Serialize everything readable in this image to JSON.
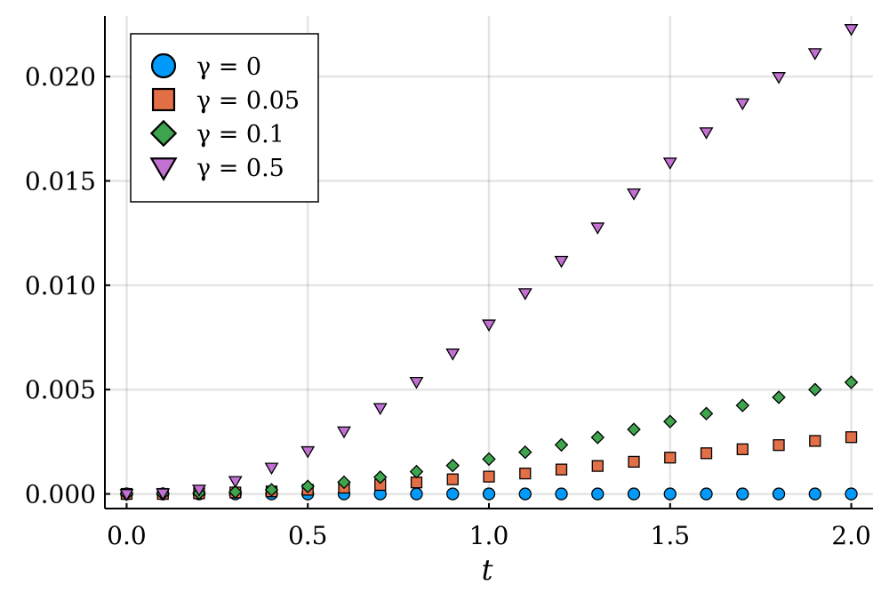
{
  "chart_data": {
    "type": "scatter",
    "title": "",
    "xlabel": "t",
    "ylabel": "",
    "xlim": [
      -0.06,
      2.06
    ],
    "ylim": [
      -0.0007,
      0.0229
    ],
    "grid": true,
    "legend_position": "top-left",
    "x_ticks": [
      0.0,
      0.5,
      1.0,
      1.5,
      2.0
    ],
    "x_tick_labels": [
      "0.0",
      "0.5",
      "1.0",
      "1.5",
      "2.0"
    ],
    "y_ticks": [
      0.0,
      0.005,
      0.01,
      0.015,
      0.02
    ],
    "y_tick_labels": [
      "0.000",
      "0.005",
      "0.010",
      "0.015",
      "0.020"
    ],
    "x": [
      0.0,
      0.1,
      0.2,
      0.3,
      0.4,
      0.5,
      0.6,
      0.7,
      0.8,
      0.9,
      1.0,
      1.1,
      1.2,
      1.3,
      1.4,
      1.5,
      1.6,
      1.7,
      1.8,
      1.9,
      2.0
    ],
    "series": [
      {
        "name": "γ = 0",
        "marker": "circle",
        "color": "#009AFA",
        "values": [
          0,
          0,
          0,
          0,
          0,
          0,
          0,
          0,
          0,
          0,
          0,
          0,
          0,
          0,
          0,
          0,
          0,
          0,
          0,
          0,
          0
        ]
      },
      {
        "name": "γ = 0.05",
        "marker": "square",
        "color": "#E36F47",
        "values": [
          0.0,
          0.0,
          3e-05,
          7e-05,
          0.00012,
          0.0002,
          0.0003,
          0.00043,
          0.00055,
          0.0007,
          0.00083,
          0.00098,
          0.00117,
          0.00134,
          0.00154,
          0.00174,
          0.00195,
          0.00214,
          0.00234,
          0.00254,
          0.00272
        ]
      },
      {
        "name": "γ = 0.1",
        "marker": "diamond",
        "color": "#3EA44E",
        "values": [
          0.0,
          1e-05,
          4e-05,
          0.0001,
          0.0002,
          0.00036,
          0.00056,
          0.0008,
          0.00107,
          0.00136,
          0.00167,
          0.002,
          0.00235,
          0.00271,
          0.00309,
          0.00347,
          0.00385,
          0.00424,
          0.00463,
          0.005,
          0.00535
        ]
      },
      {
        "name": "γ = 0.5",
        "marker": "triangle-down",
        "color": "#C271D2",
        "values": [
          0.0,
          3e-05,
          0.00021,
          0.00062,
          0.00126,
          0.00205,
          0.003,
          0.00412,
          0.00537,
          0.00673,
          0.00812,
          0.00962,
          0.01117,
          0.01277,
          0.0144,
          0.01588,
          0.01733,
          0.01872,
          0.01998,
          0.02112,
          0.02228
        ]
      }
    ]
  }
}
